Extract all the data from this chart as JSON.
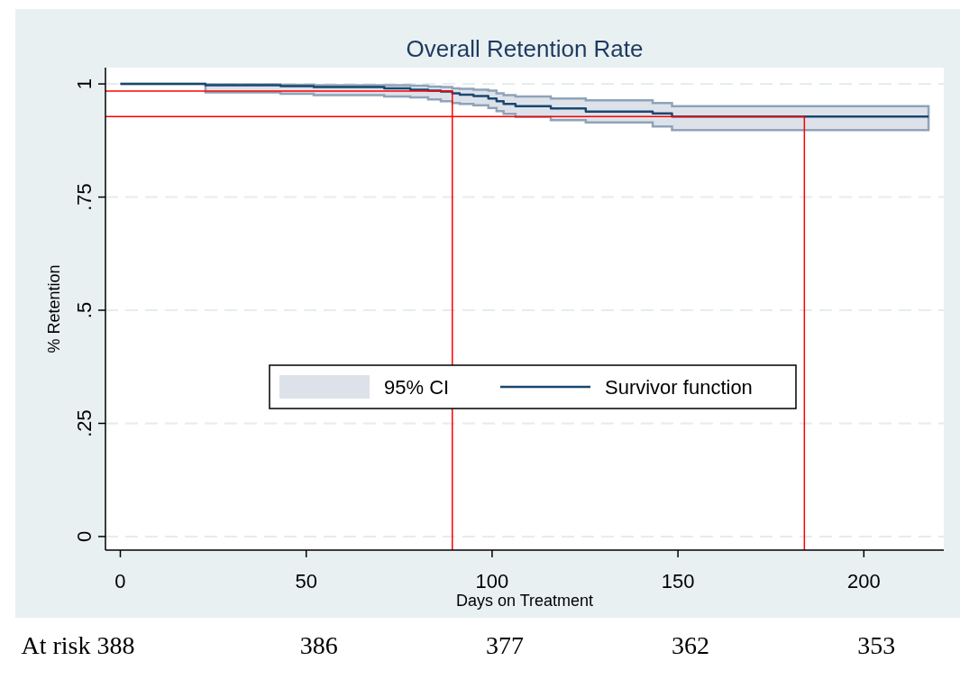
{
  "chart_data": {
    "type": "step",
    "title": "Overall Retention Rate",
    "xlabel": "Days on Treatment",
    "ylabel": "% Retention",
    "x": [
      0,
      22.9,
      43.1,
      52,
      71,
      78,
      82.8,
      86.2,
      89.3,
      91.3,
      95,
      99,
      101.2,
      103.1,
      106.3,
      115.8,
      125.2,
      143.2,
      148.4,
      217.4
    ],
    "series": [
      {
        "name": "Survivor function",
        "color": "#1a476f",
        "values": [
          1,
          0.997,
          0.995,
          0.993,
          0.99,
          0.987,
          0.985,
          0.983,
          0.979,
          0.976,
          0.973,
          0.968,
          0.962,
          0.956,
          0.951,
          0.946,
          0.939,
          0.935,
          0.928,
          0.928
        ],
        "lower": [
          1,
          0.981,
          0.978,
          0.975,
          0.972,
          0.97,
          0.966,
          0.962,
          0.958,
          0.956,
          0.953,
          0.947,
          0.94,
          0.934,
          0.927,
          0.92,
          0.915,
          0.906,
          0.898,
          0.898
        ],
        "upper": [
          1,
          0.999,
          0.998,
          0.997,
          0.997,
          0.996,
          0.994,
          0.993,
          0.99,
          0.989,
          0.987,
          0.985,
          0.979,
          0.975,
          0.972,
          0.968,
          0.964,
          0.958,
          0.951,
          0.951
        ]
      }
    ],
    "xlim": [
      -4,
      221.5
    ],
    "ylim": [
      -0.03,
      1.036
    ],
    "xticks": [
      0,
      50,
      100,
      150,
      200
    ],
    "yticks": [
      0,
      {
        "value": 0.25,
        "label": ".25"
      },
      {
        "value": 0.5,
        "label": ".5"
      },
      {
        "value": 0.75,
        "label": ".75"
      },
      1
    ],
    "grid": "y",
    "legend": "center",
    "ref_lines": [
      {
        "axis": "x",
        "value": 89.3,
        "color": "#ff0000"
      },
      {
        "axis": "x",
        "value": 184,
        "color": "#ff0000"
      },
      {
        "axis": "y",
        "value": 0.984,
        "color": "#ff0000"
      },
      {
        "axis": "y",
        "value": 0.928,
        "color": "#ff0000"
      }
    ],
    "annotations": [
      "95% CI",
      "At risk 388",
      "386",
      "377",
      "362",
      "353"
    ]
  }
}
